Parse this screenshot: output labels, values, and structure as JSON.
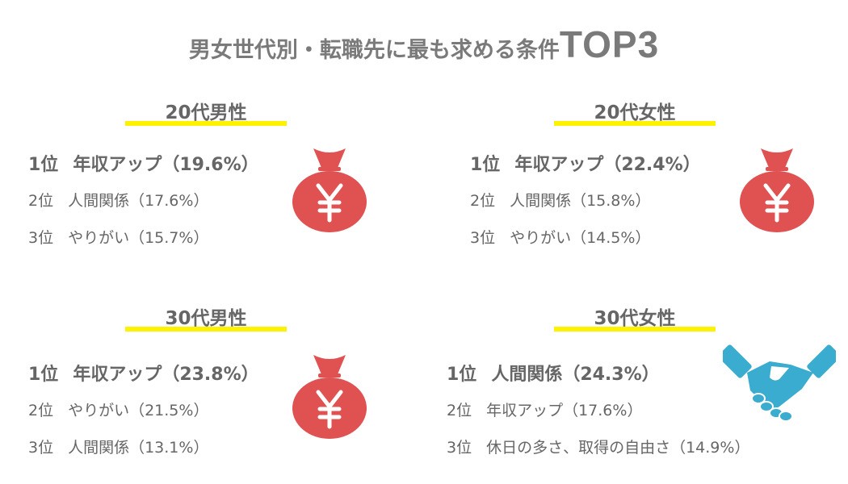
{
  "title": {
    "main": "男女世代別・転職先に最も求める条件",
    "accent": "TOP3"
  },
  "colors": {
    "highlight": "#fff200",
    "money_bag": "#e05252",
    "handshake": "#3aaccf",
    "text": "#666666"
  },
  "panels": [
    {
      "heading": "20代男性",
      "icon": "money-bag-yen",
      "ranks": [
        {
          "pos": "1位",
          "item": "年収アップ（19.6%）"
        },
        {
          "pos": "2位",
          "item": "人間関係（17.6%）"
        },
        {
          "pos": "3位",
          "item": "やりがい（15.7%）"
        }
      ]
    },
    {
      "heading": "20代女性",
      "icon": "money-bag-yen",
      "ranks": [
        {
          "pos": "1位",
          "item": "年収アップ（22.4%）"
        },
        {
          "pos": "2位",
          "item": "人間関係（15.8%）"
        },
        {
          "pos": "3位",
          "item": "やりがい（14.5%）"
        }
      ]
    },
    {
      "heading": "30代男性",
      "icon": "money-bag-yen",
      "ranks": [
        {
          "pos": "1位",
          "item": "年収アップ（23.8%）"
        },
        {
          "pos": "2位",
          "item": "やりがい（21.5%）"
        },
        {
          "pos": "3位",
          "item": "人間関係（13.1%）"
        }
      ]
    },
    {
      "heading": "30代女性",
      "icon": "handshake",
      "ranks": [
        {
          "pos": "1位",
          "item": "人間関係（24.3%）"
        },
        {
          "pos": "2位",
          "item": "年収アップ（17.6%）"
        },
        {
          "pos": "3位",
          "item": "休日の多さ、取得の自由さ（14.9%）"
        }
      ]
    }
  ]
}
